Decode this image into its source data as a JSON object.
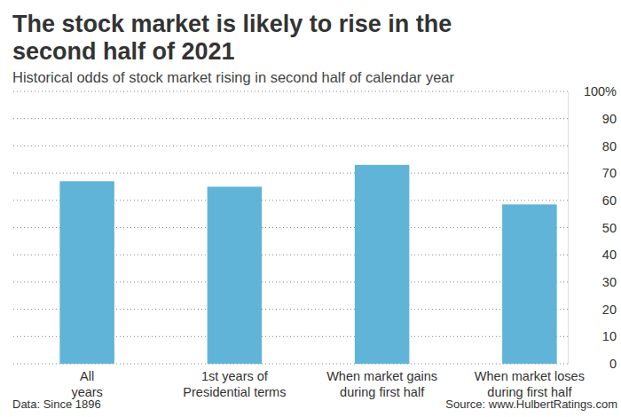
{
  "chart_data": {
    "type": "bar",
    "title": "The stock market is likely to rise in the\nsecond half of 2021",
    "subtitle": "Historical odds of stock market rising in second half of calendar year",
    "categories": [
      "All\nyears",
      "1st years of\nPresidential terms",
      "When market gains\nduring first half",
      "When market loses\nduring  first half"
    ],
    "values": [
      67,
      65,
      73,
      58.5
    ],
    "color": "#5fb4d8",
    "ylim": [
      0,
      100
    ],
    "yticks": [
      0,
      10,
      20,
      30,
      40,
      50,
      60,
      70,
      80,
      90,
      {
        "value": 100,
        "label": "100%"
      }
    ],
    "grid": true,
    "annotations": [
      "Data: Since 1896",
      "Source: www.HulbertRatings.com"
    ]
  }
}
